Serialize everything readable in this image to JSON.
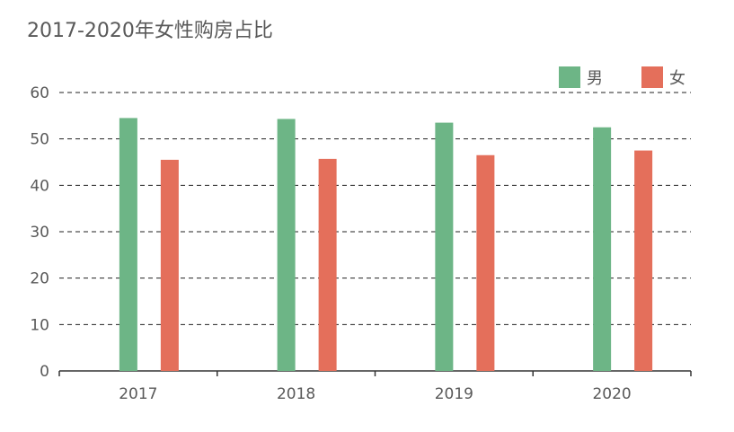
{
  "chart_data": {
    "type": "bar",
    "title": "2017-2020年女性购房占比",
    "categories": [
      "2017",
      "2018",
      "2019",
      "2020"
    ],
    "series": [
      {
        "name": "男",
        "values": [
          54.5,
          54.3,
          53.5,
          52.5
        ],
        "color": "#6db586"
      },
      {
        "name": "女",
        "values": [
          45.5,
          45.7,
          46.5,
          47.5
        ],
        "color": "#e46f5b"
      }
    ],
    "yticks": [
      "0",
      "10",
      "20",
      "30",
      "40",
      "50",
      "60"
    ],
    "ylim": [
      0,
      60
    ],
    "grid": true,
    "grid_style": "dashed",
    "legend_position": "top-right",
    "xlabel": "",
    "ylabel": ""
  }
}
